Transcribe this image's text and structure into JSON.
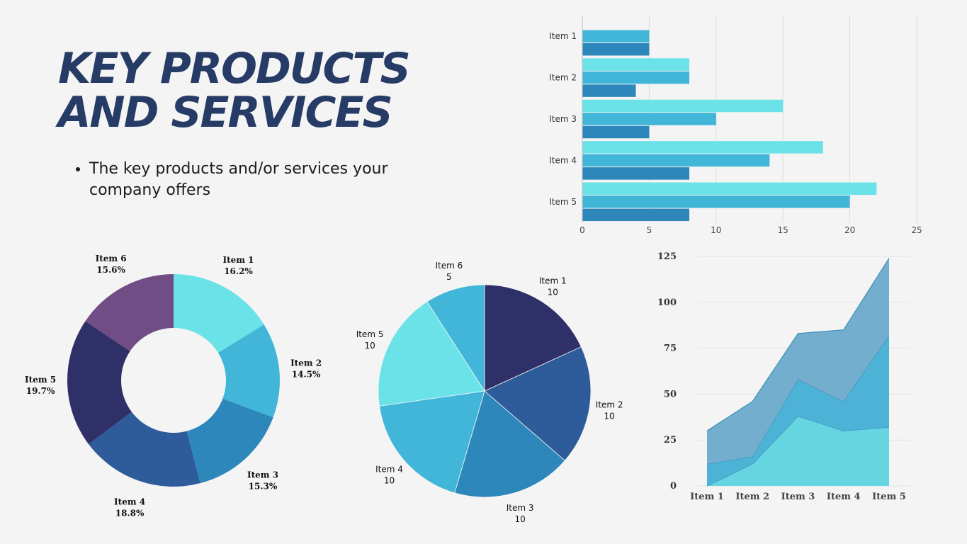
{
  "title_lines": [
    "KEY PRODUCTS",
    "AND SERVICES"
  ],
  "bullets": [
    "The key products and/or services your company offers"
  ],
  "chart_data": [
    {
      "type": "bar",
      "orientation": "horizontal",
      "categories": [
        "Item 1",
        "Item 2",
        "Item 3",
        "Item 4",
        "Item 5"
      ],
      "series": [
        {
          "values": [
            null,
            8,
            15,
            18,
            22
          ],
          "color": "#6be2e8"
        },
        {
          "values": [
            5,
            8,
            10,
            14,
            20
          ],
          "color": "#42b6d8"
        },
        {
          "values": [
            5,
            4,
            5,
            8,
            8
          ],
          "color": "#2d87bb"
        }
      ],
      "xlim": [
        0,
        25
      ],
      "xticks": [
        0,
        5,
        10,
        15,
        20,
        25
      ],
      "grid": true
    },
    {
      "type": "pie",
      "variant": "donut",
      "labels": [
        "Item 1",
        "Item 2",
        "Item 3",
        "Item 4",
        "Item 5",
        "Item 6"
      ],
      "values": [
        16.2,
        14.5,
        15.3,
        18.8,
        19.7,
        15.6
      ],
      "value_labels": [
        "16.2%",
        "14.5%",
        "15.3%",
        "18.8%",
        "19.7%",
        "15.6%"
      ],
      "colors": [
        "#6be2e8",
        "#42b6d8",
        "#2d87bb",
        "#2e5b9a",
        "#2f3068",
        "#714d85"
      ]
    },
    {
      "type": "pie",
      "labels": [
        "Item 1",
        "Item 2",
        "Item 3",
        "Item 4",
        "Item 5",
        "Item 6"
      ],
      "values": [
        10,
        10,
        10,
        10,
        10,
        5
      ],
      "value_labels": [
        "10",
        "10",
        "10",
        "10",
        "10",
        "5"
      ],
      "colors": [
        "#2f3068",
        "#2e5b9a",
        "#2d87bb",
        "#42b6d8",
        "#6be2e8",
        "#42b6d8"
      ]
    },
    {
      "type": "area",
      "stacked": true,
      "categories": [
        "Item 1",
        "Item 2",
        "Item 3",
        "Item 4",
        "Item 5"
      ],
      "series": [
        {
          "values": [
            0,
            12,
            38,
            30,
            32
          ],
          "color": "#65d5e2"
        },
        {
          "values": [
            12,
            4,
            20,
            16,
            50
          ],
          "color": "#4db3d6"
        },
        {
          "values": [
            18,
            30,
            25,
            39,
            42
          ],
          "color": "#73aece"
        }
      ],
      "ylim": [
        0,
        125
      ],
      "yticks": [
        0,
        25,
        50,
        75,
        100,
        125
      ],
      "grid": true
    }
  ]
}
